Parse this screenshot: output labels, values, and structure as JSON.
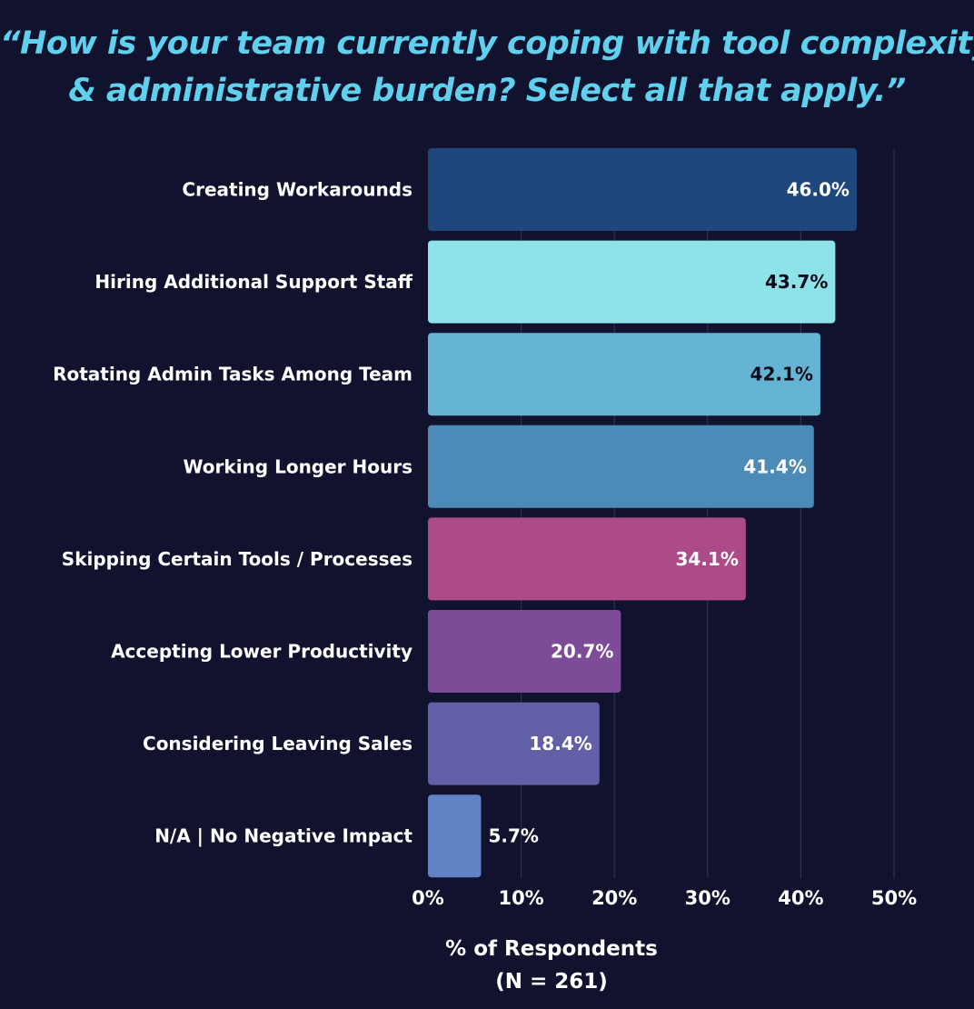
{
  "chart_data": {
    "type": "bar",
    "orientation": "horizontal",
    "title_lines": [
      "“How is your team currently coping with tool complexity",
      "& administrative burden? Select all that apply.”"
    ],
    "categories": [
      "Creating Workarounds",
      "Hiring Additional Support Staff",
      "Rotating Admin Tasks Among Team",
      "Working Longer Hours",
      "Skipping Certain Tools / Processes",
      "Accepting Lower Productivity",
      "Considering Leaving Sales",
      "N/A | No Negative Impact"
    ],
    "values": [
      46.0,
      43.7,
      42.1,
      41.4,
      34.1,
      20.7,
      18.4,
      5.7
    ],
    "value_labels": [
      "46.0%",
      "43.7%",
      "42.1%",
      "41.4%",
      "34.1%",
      "20.7%",
      "18.4%",
      "5.7%"
    ],
    "colors": [
      "#1f477b",
      "#8ee3e8",
      "#66b4d3",
      "#4c8ab7",
      "#ad4a88",
      "#7d4c99",
      "#6160a6",
      "#6183c6"
    ],
    "label_colors": [
      "#ffffff",
      "#0a0a1a",
      "#0a0a1a",
      "#ffffff",
      "#ffffff",
      "#ffffff",
      "#ffffff",
      "#ffffff"
    ],
    "xlim": [
      0,
      50
    ],
    "xticks": [
      0,
      10,
      20,
      30,
      40,
      50
    ],
    "xtick_labels": [
      "0%",
      "10%",
      "20%",
      "30%",
      "40%",
      "50%"
    ],
    "xlabel_lines": [
      "% of Respondents",
      "(N = 261)"
    ],
    "grid": true,
    "legend": "none",
    "background": "#11122e",
    "title_color": "#5fd1ee"
  }
}
